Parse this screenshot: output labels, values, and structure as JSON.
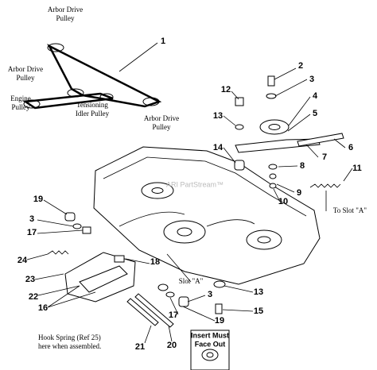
{
  "labels": [
    {
      "lines": [
        "Arbor Drive",
        "Pulley"
      ]
    },
    {
      "lines": [
        "Arbor Drive",
        "Pulley"
      ]
    },
    {
      "lines": [
        "Engine",
        "Pulley"
      ]
    },
    {
      "lines": [
        "Tensioning",
        "Idler Pulley"
      ]
    },
    {
      "lines": [
        "Arbor Drive",
        "Pulley"
      ]
    },
    {
      "lines": [
        "Slot \"A\""
      ]
    },
    {
      "lines": [
        "To Slot \"A\""
      ]
    },
    {
      "lines": [
        "Hook Spring (Ref 25)",
        "here when assembled."
      ]
    },
    {
      "lines": [
        "Insert Must",
        "Face Out"
      ]
    }
  ],
  "watermark": "ARI PartStream™",
  "callouts": [
    "1",
    "2",
    "3",
    "4",
    "12",
    "13",
    "5",
    "6",
    "7",
    "14",
    "8",
    "11",
    "9",
    "10",
    "19",
    "3",
    "17",
    "24",
    "23",
    "22",
    "18",
    "16",
    "13",
    "3",
    "15",
    "17",
    "19",
    "21",
    "20"
  ]
}
